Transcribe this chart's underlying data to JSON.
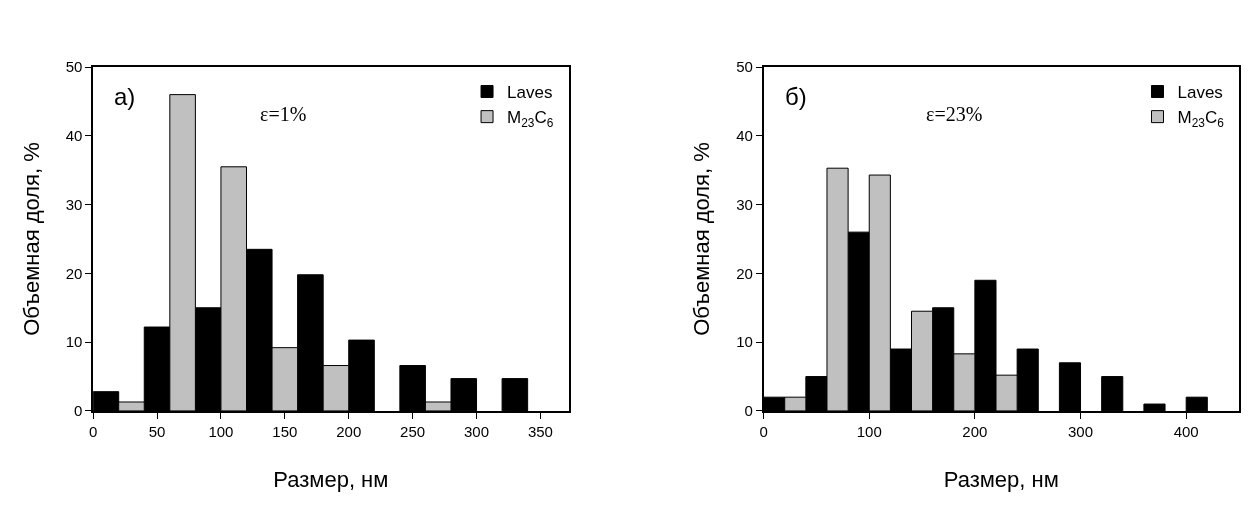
{
  "chart_data": [
    {
      "type": "bar",
      "xlabel": "Размер, нм",
      "ylabel": "Объемная доля, %",
      "annotations": [
        "a)",
        "ε=1%"
      ],
      "xlim": [
        0,
        372
      ],
      "xticks": [
        0,
        50,
        100,
        150,
        200,
        250,
        300,
        350
      ],
      "ylim": [
        0,
        50
      ],
      "yticks": [
        0,
        10,
        20,
        30,
        40,
        50
      ],
      "grid": false,
      "legend": "top right",
      "series": [
        {
          "name": "Laves",
          "color": "#000000",
          "x": [
            10,
            50,
            90,
            130,
            170,
            210,
            250,
            290,
            330
          ],
          "values": [
            2.8,
            12.2,
            15,
            23.5,
            19.8,
            10.3,
            6.6,
            4.7,
            4.7
          ]
        },
        {
          "name": "M$_{23}$C$_{6}$",
          "color": "#c0c0c0",
          "x": [
            30,
            70,
            110,
            150,
            190,
            270
          ],
          "values": [
            1.3,
            46,
            35.5,
            9.2,
            6.6,
            1.3
          ]
        }
      ]
    },
    {
      "type": "bar",
      "xlabel": "Размер, нм",
      "ylabel": "Объемная доля, %",
      "annotations": [
        "б)",
        "ε=23%"
      ],
      "xlim": [
        0,
        450
      ],
      "xticks": [
        0,
        100,
        200,
        300,
        400
      ],
      "ylim": [
        0,
        50
      ],
      "yticks": [
        0,
        10,
        20,
        30,
        40,
        50
      ],
      "grid": false,
      "legend": "top right",
      "series": [
        {
          "name": "Laves",
          "color": "#000000",
          "x": [
            10,
            50,
            90,
            130,
            170,
            210,
            250,
            290,
            330,
            370,
            410
          ],
          "values": [
            2,
            5,
            26,
            9,
            15,
            19,
            9,
            7,
            5,
            1,
            2
          ]
        },
        {
          "name": "M$_{23}$C$_{6}$",
          "color": "#c0c0c0",
          "x": [
            30,
            70,
            110,
            150,
            190,
            230
          ],
          "values": [
            2,
            35.3,
            34.3,
            14.5,
            8.3,
            5.2
          ]
        }
      ]
    }
  ]
}
